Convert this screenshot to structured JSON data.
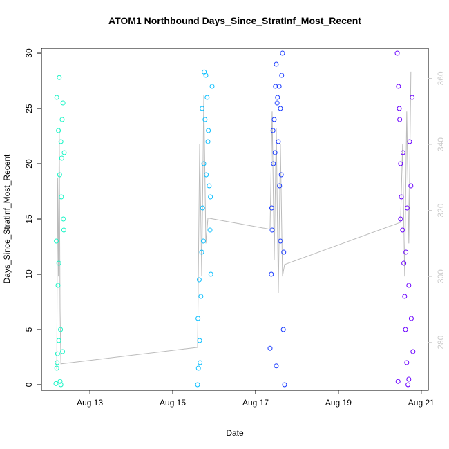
{
  "chart_data": {
    "type": "scatter",
    "title": "ATOM1 Northbound Days_Since_StratInf_Most_Recent",
    "xlabel": "Date",
    "ylabel": "Days_Since_StratInf_Most_Recent",
    "xlim": [
      11.83,
      21.17
    ],
    "xticks": [
      {
        "value": 13,
        "label": "Aug 13"
      },
      {
        "value": 15,
        "label": "Aug 15"
      },
      {
        "value": 17,
        "label": "Aug 17"
      },
      {
        "value": 19,
        "label": "Aug 19"
      },
      {
        "value": 21,
        "label": "Aug 21"
      }
    ],
    "ylim": [
      -0.5,
      30.44
    ],
    "yticks": [
      0,
      5,
      10,
      15,
      20,
      25,
      30
    ],
    "y2lim": [
      265.5,
      369.1
    ],
    "y2ticks": [
      280,
      300,
      320,
      340,
      360
    ],
    "y2color": "#cccccc",
    "series": [
      {
        "color": "#19f5c6",
        "x": [
          12.18,
          12.2,
          12.22,
          12.25,
          12.28,
          12.3,
          12.33,
          12.35,
          12.38,
          12.2,
          12.24,
          12.27,
          12.31,
          12.36,
          12.19,
          12.23,
          12.29,
          12.34,
          12.21,
          12.26,
          12.32,
          12.37,
          12.25,
          12.3
        ],
        "values": [
          0.1,
          1.5,
          2.8,
          4,
          0.3,
          22,
          24,
          25.5,
          21,
          26,
          23,
          19,
          17,
          15,
          13,
          9,
          5,
          3,
          2,
          27.8,
          20.5,
          14,
          11,
          0
        ]
      },
      {
        "color": "#0cbfff",
        "x": [
          15.6,
          15.62,
          15.65,
          15.68,
          15.7,
          15.72,
          15.75,
          15.78,
          15.8,
          15.83,
          15.85,
          15.88,
          15.9,
          15.92,
          15.95,
          15.61,
          15.66,
          15.71,
          15.76,
          15.81,
          15.86,
          15.91,
          15.64,
          15.74
        ],
        "values": [
          0,
          1.5,
          4,
          8,
          12,
          16,
          20,
          24,
          28,
          26,
          22,
          18,
          14,
          10,
          27,
          6,
          2,
          25,
          28.3,
          19,
          23,
          17,
          9.5,
          13
        ]
      },
      {
        "color": "#1a3cff",
        "x": [
          17.35,
          17.38,
          17.4,
          17.43,
          17.45,
          17.48,
          17.5,
          17.53,
          17.55,
          17.58,
          17.6,
          17.63,
          17.65,
          17.68,
          17.7,
          17.42,
          17.47,
          17.52,
          17.57,
          17.62,
          17.67,
          17.39,
          17.5,
          17.6
        ],
        "values": [
          3.3,
          10,
          14,
          20,
          24,
          27,
          29,
          26,
          22,
          18,
          25,
          28,
          30,
          12,
          0,
          23,
          21,
          25.5,
          27,
          19,
          5,
          16,
          1.7,
          13
        ]
      },
      {
        "color": "#6a00ff",
        "x": [
          20.42,
          20.45,
          20.48,
          20.5,
          20.52,
          20.55,
          20.58,
          20.6,
          20.62,
          20.65,
          20.68,
          20.7,
          20.72,
          20.75,
          20.78,
          20.8,
          20.44,
          20.5,
          20.56,
          20.63,
          20.7,
          20.76,
          20.47,
          20.66
        ],
        "values": [
          30,
          27,
          24,
          20,
          17,
          14,
          11,
          8,
          5,
          2,
          0,
          0.5,
          22,
          18,
          26,
          3,
          0.3,
          15,
          21,
          12,
          9,
          6,
          25,
          16
        ]
      },
      {
        "type": "line",
        "axis": "y2",
        "color": "#bbbbbb",
        "x": [
          12.2,
          12.22,
          12.24,
          12.26,
          12.28,
          12.3,
          15.6,
          15.65,
          15.7,
          15.75,
          15.8,
          15.85,
          17.35,
          17.4,
          17.45,
          17.5,
          17.55,
          17.6,
          17.65,
          17.7,
          20.5,
          20.55,
          20.6,
          20.65,
          20.7,
          20.75
        ],
        "values": [
          272,
          330,
          300,
          345,
          290,
          273.5,
          278.5,
          340,
          300,
          355,
          310,
          317.7,
          314.3,
          350,
          305,
          345,
          295,
          340,
          300,
          303.6,
          316.4,
          340,
          300,
          350,
          310,
          362
        ]
      }
    ]
  }
}
